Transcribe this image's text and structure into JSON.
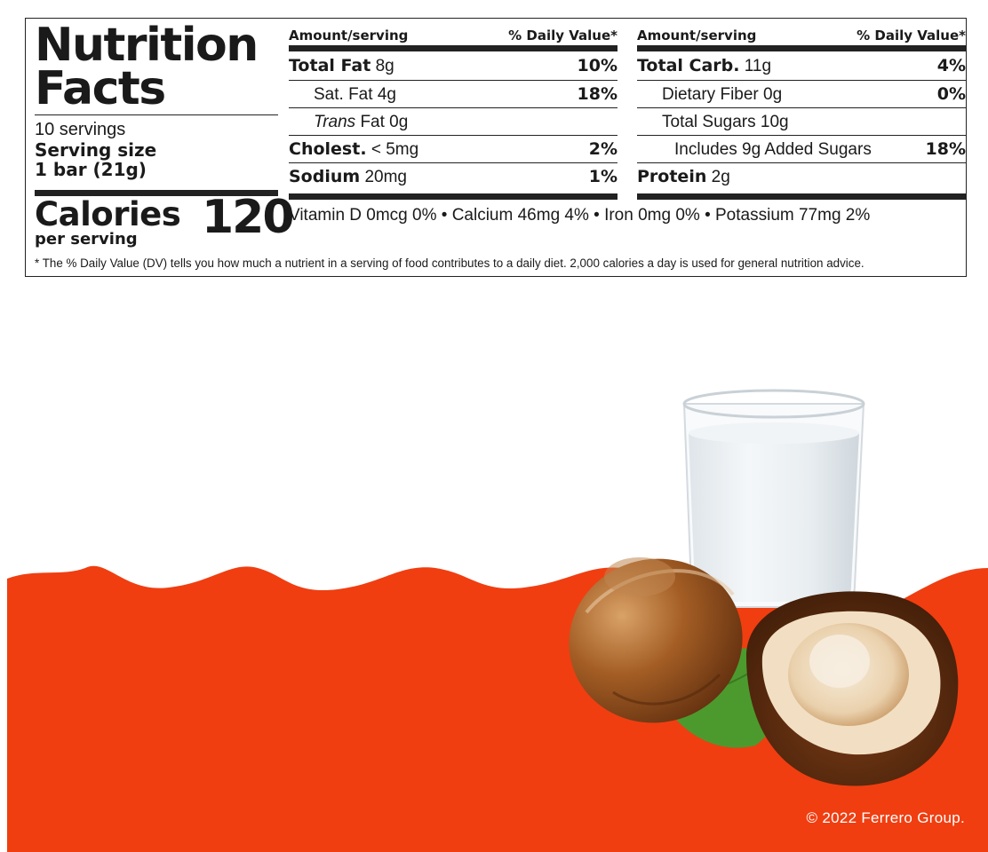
{
  "label": {
    "title_line1": "Nutrition",
    "title_line2": "Facts",
    "servings": "10 servings",
    "serving_size_label": "Serving size",
    "serving_size_value": "1 bar (21g)",
    "calories_label": "Calories",
    "calories_value": "120",
    "calories_per": "per serving",
    "left_column": {
      "header_amount": "Amount/serving",
      "header_dv": "% Daily Value*",
      "rows": [
        {
          "name": "Total Fat",
          "amount": "8g",
          "dv": "10%"
        },
        {
          "name": "Sat. Fat",
          "amount": "4g",
          "dv": "18%"
        },
        {
          "name": "Trans",
          "amount": "Fat 0g",
          "dv": ""
        },
        {
          "name": "Cholest.",
          "amount": "< 5mg",
          "dv": "2%"
        },
        {
          "name": "Sodium",
          "amount": "20mg",
          "dv": "1%"
        }
      ]
    },
    "right_column": {
      "header_amount": "Amount/serving",
      "header_dv": "% Daily Value*",
      "rows": [
        {
          "name": "Total Carb.",
          "amount": "11g",
          "dv": "4%"
        },
        {
          "name": "Dietary Fiber",
          "amount": "0g",
          "dv": "0%"
        },
        {
          "name": "Total Sugars",
          "amount": "10g",
          "dv": ""
        },
        {
          "name": "Includes 9g Added Sugars",
          "amount": "",
          "dv": "18%"
        },
        {
          "name": "Protein",
          "amount": "2g",
          "dv": ""
        }
      ]
    },
    "vitamins": "Vitamin D 0mcg 0%  •  Calcium 46mg 4%  •  Iron 0mg 0%  •  Potassium 77mg 2%",
    "footnote": "*  The % Daily Value (DV) tells you how much a nutrient in a serving of food contributes to a daily diet. 2,000 calories a day is used for general nutrition advice."
  },
  "illustration": {
    "items": [
      "glass-of-milk",
      "hazelnut",
      "cracked-hazelnut",
      "hazelnut-leaf"
    ],
    "colors": {
      "orange": "#f03e11",
      "shell": "#8a4a1c",
      "kernel": "#f2dfc3",
      "leaf": "#4c9a2e",
      "milk": "#eef2f4"
    }
  },
  "copyright": "© 2022 Ferrero Group."
}
